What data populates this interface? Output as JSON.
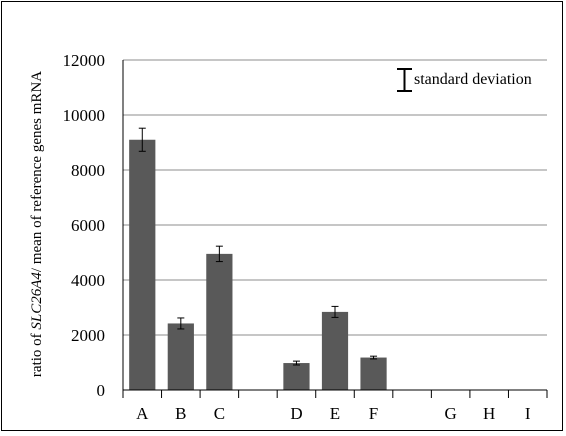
{
  "chart_data": {
    "type": "bar",
    "categories": [
      "A",
      "B",
      "C",
      "",
      "D",
      "E",
      "F",
      "",
      "G",
      "H",
      "I"
    ],
    "values": [
      9100,
      2420,
      4950,
      null,
      980,
      2840,
      1180,
      null,
      0,
      0,
      0
    ],
    "errors": [
      420,
      200,
      280,
      null,
      70,
      200,
      50,
      null,
      0,
      0,
      0
    ],
    "ylabel_parts": [
      "ratio of ",
      "SLC26A4",
      "/ mean of reference genes mRNA"
    ],
    "yticks": [
      "0",
      "2000",
      "4000",
      "6000",
      "8000",
      "10000",
      "12000"
    ],
    "ylim": [
      0,
      12000
    ],
    "grid": true,
    "legend": {
      "label": "standard deviation",
      "placement": "top-right"
    },
    "colors": {
      "bar": "#595959",
      "grid": "#8c8c8c",
      "axis": "#000000"
    }
  }
}
